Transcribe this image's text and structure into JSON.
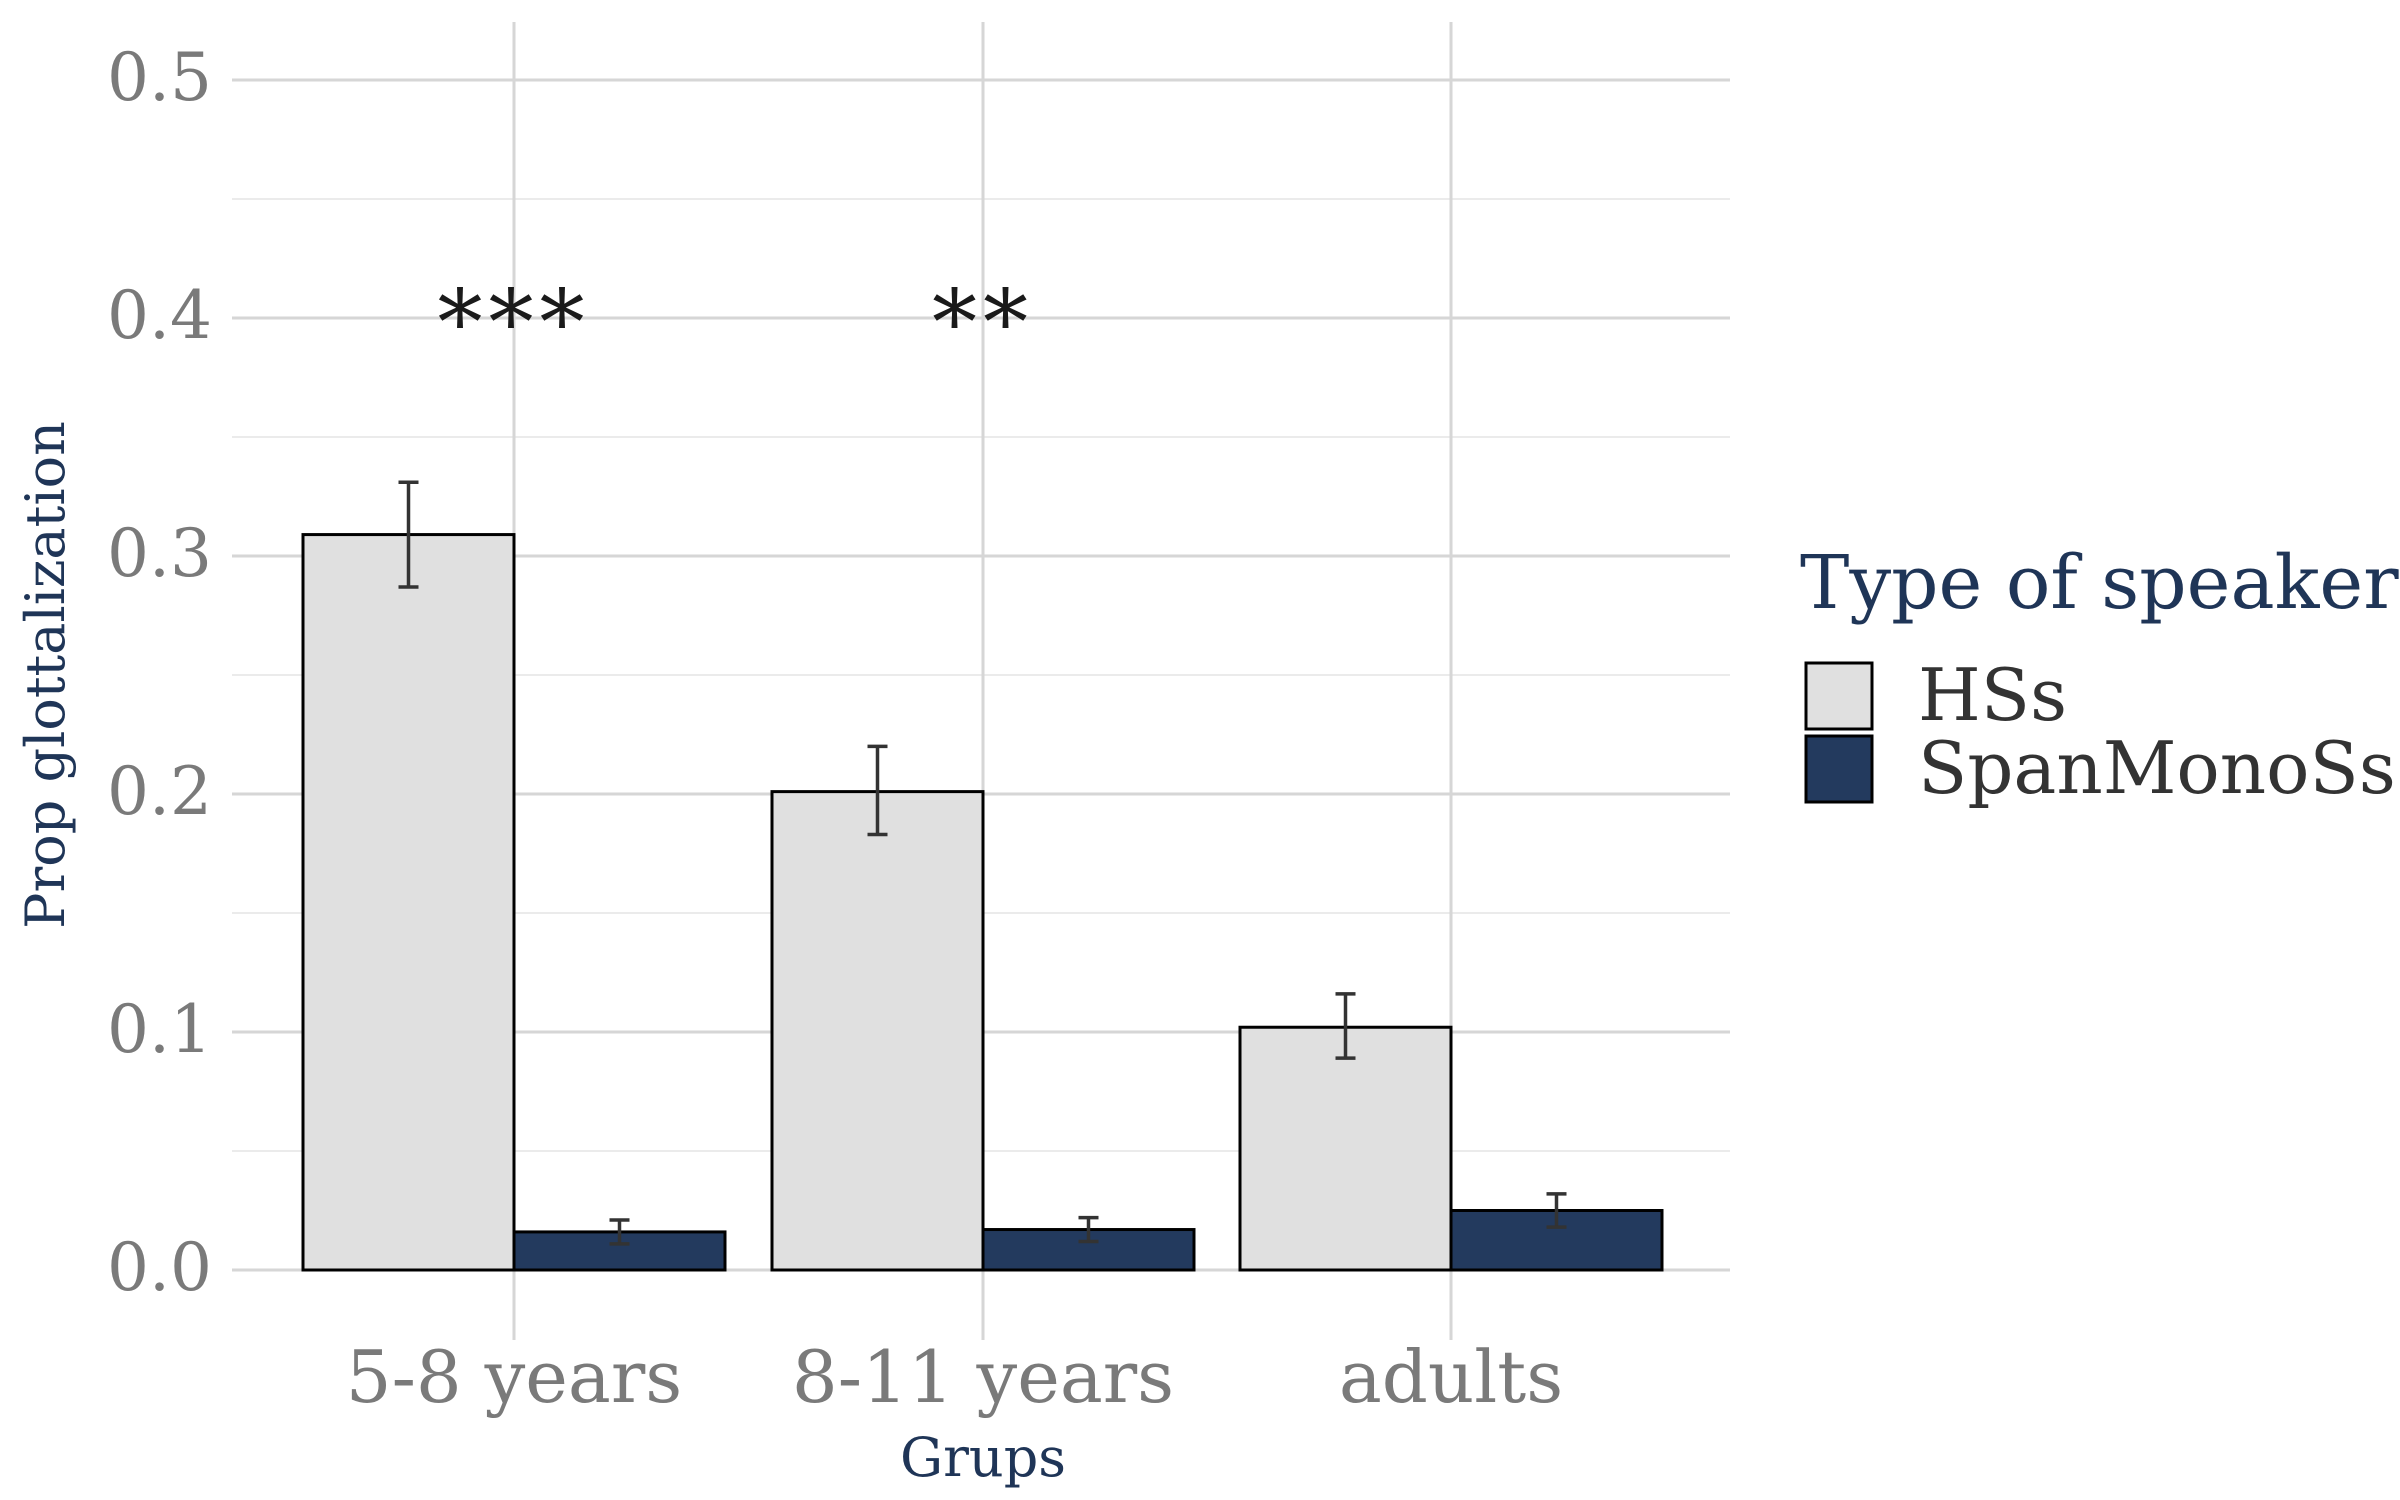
{
  "chart_data": {
    "type": "bar",
    "title": "",
    "xlabel": "Grups",
    "ylabel": "Prop glottalization",
    "categories": [
      "5-8 years",
      "8-11 years",
      "adults"
    ],
    "series": [
      {
        "name": "HSs",
        "values": [
          0.309,
          0.201,
          0.102
        ],
        "error_low": [
          0.287,
          0.183,
          0.089
        ],
        "error_high": [
          0.331,
          0.22,
          0.116
        ],
        "color": "#e0e0e0"
      },
      {
        "name": "SpanMonoSs",
        "values": [
          0.016,
          0.017,
          0.025
        ],
        "error_low": [
          0.011,
          0.012,
          0.018
        ],
        "error_high": [
          0.021,
          0.022,
          0.032
        ],
        "color": "#233a5e"
      }
    ],
    "ylim": [
      0,
      0.5
    ],
    "yticks": [
      "0.0",
      "0.1",
      "0.2",
      "0.3",
      "0.4",
      "0.5"
    ],
    "ytick_values": [
      0,
      0.1,
      0.2,
      0.3,
      0.4,
      0.5
    ],
    "annotations": [
      {
        "category": "5-8 years",
        "text": "***",
        "y": 0.4
      },
      {
        "category": "8-11 years",
        "text": "**",
        "y": 0.4
      }
    ],
    "legend": {
      "title": "Type of speaker",
      "position": "right"
    },
    "grid": true
  }
}
